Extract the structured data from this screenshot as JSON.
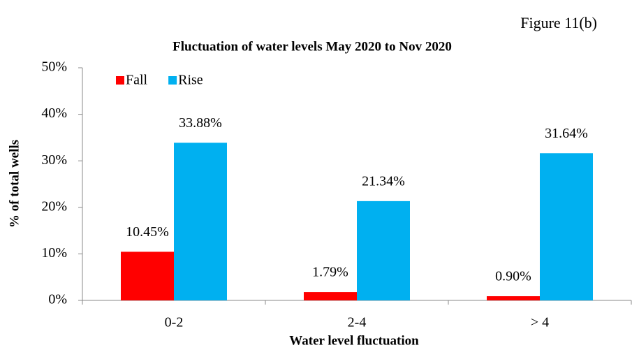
{
  "figure_label": "Figure 11(b)",
  "chart_data": {
    "type": "bar",
    "title": "Fluctuation of water levels May 2020 to Nov 2020",
    "x_label": "Water level fluctuation",
    "y_label": "% of total wells",
    "categories": [
      "0-2",
      "2-4",
      "> 4"
    ],
    "series": [
      {
        "name": "Fall",
        "color": "#ff0000",
        "values": [
          10.45,
          1.79,
          0.9
        ],
        "value_labels": [
          "10.45%",
          "1.79%",
          "0.90%"
        ]
      },
      {
        "name": "Rise",
        "color": "#00b0f0",
        "values": [
          33.88,
          21.34,
          31.64
        ],
        "value_labels": [
          "33.88%",
          "21.34%",
          "31.64%"
        ]
      }
    ],
    "ylim": [
      0,
      50
    ],
    "yticks": [
      {
        "value": 0,
        "label": "0%"
      },
      {
        "value": 10,
        "label": "10%"
      },
      {
        "value": 20,
        "label": "20%"
      },
      {
        "value": 30,
        "label": "30%"
      },
      {
        "value": 40,
        "label": "40%"
      },
      {
        "value": 50,
        "label": "50%"
      }
    ],
    "grid": false,
    "legend": "upper left"
  }
}
